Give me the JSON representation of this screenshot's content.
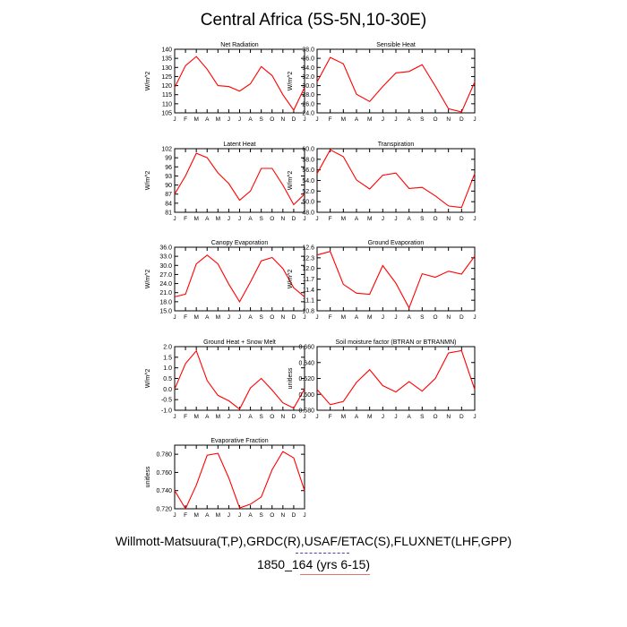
{
  "title": "Central Africa (5S-5N,10-30E)",
  "footer": {
    "line1": "Willmott-Matsuura(T,P),GRDC(R),USAF/ETAC(S),FLUXNET(LHF,GPP)",
    "line2": "1850_164 (yrs 6-15)"
  },
  "colors": {
    "series": "#ff0000",
    "axis": "#000000"
  },
  "chart_data": [
    {
      "type": "line",
      "title": "Net Radiation",
      "ylabel": "W/m^2",
      "x": [
        "J",
        "F",
        "M",
        "A",
        "M",
        "J",
        "J",
        "A",
        "S",
        "O",
        "N",
        "D",
        "J"
      ],
      "yticks": [
        "105",
        "110",
        "115",
        "120",
        "125",
        "130",
        "135",
        "140"
      ],
      "ylim": [
        105,
        140
      ],
      "series": [
        {
          "values": [
            119,
            131,
            136,
            129,
            120,
            119.5,
            117,
            121,
            130.5,
            125.5,
            115,
            106.5,
            119
          ]
        }
      ]
    },
    {
      "type": "line",
      "title": "Sensible Heat",
      "ylabel": "W/m^2",
      "x": [
        "J",
        "F",
        "M",
        "A",
        "M",
        "J",
        "J",
        "A",
        "S",
        "O",
        "N",
        "D",
        "J"
      ],
      "yticks": [
        "24.0",
        "26.0",
        "28.0",
        "30.0",
        "32.0",
        "34.0",
        "36.0",
        "38.0"
      ],
      "ylim": [
        24,
        38
      ],
      "series": [
        {
          "values": [
            30.8,
            36.2,
            34.8,
            28.1,
            26.5,
            29.8,
            32.8,
            33.1,
            34.6,
            29.9,
            24.9,
            24.2,
            30.8
          ]
        }
      ]
    },
    {
      "type": "line",
      "title": "Latent Heat",
      "ylabel": "W/m^2",
      "x": [
        "J",
        "F",
        "M",
        "A",
        "M",
        "J",
        "J",
        "A",
        "S",
        "O",
        "N",
        "D",
        "J"
      ],
      "yticks": [
        "81",
        "84",
        "87",
        "90",
        "93",
        "96",
        "99",
        "102"
      ],
      "ylim": [
        81,
        102
      ],
      "series": [
        {
          "values": [
            87,
            93,
            100.5,
            99,
            94,
            90.5,
            85,
            88,
            95.5,
            95.5,
            90,
            83.5,
            87
          ]
        }
      ]
    },
    {
      "type": "line",
      "title": "Transpiration",
      "ylabel": "W/m^2",
      "x": [
        "J",
        "F",
        "M",
        "A",
        "M",
        "J",
        "J",
        "A",
        "S",
        "O",
        "N",
        "D",
        "J"
      ],
      "yticks": [
        "48.0",
        "50.0",
        "52.0",
        "54.0",
        "56.0",
        "58.0",
        "60.0"
      ],
      "ylim": [
        48,
        60
      ],
      "series": [
        {
          "values": [
            55.3,
            59.8,
            58.5,
            54.1,
            52.4,
            55,
            55.4,
            52.5,
            52.7,
            51.1,
            49.2,
            48.9,
            55.3
          ]
        }
      ]
    },
    {
      "type": "line",
      "title": "Canopy Evaporation",
      "ylabel": "W/m^2",
      "x": [
        "J",
        "F",
        "M",
        "A",
        "M",
        "J",
        "J",
        "A",
        "S",
        "O",
        "N",
        "D",
        "J"
      ],
      "yticks": [
        "15.0",
        "18.0",
        "21.0",
        "24.0",
        "27.0",
        "30.0",
        "33.0",
        "36.0"
      ],
      "ylim": [
        15,
        36
      ],
      "series": [
        {
          "values": [
            19.6,
            20.5,
            30.5,
            33.4,
            30.5,
            23.8,
            18,
            24.5,
            31.5,
            32.6,
            29,
            22.6,
            19.6
          ]
        }
      ]
    },
    {
      "type": "line",
      "title": "Ground Evaporation",
      "ylabel": "W/m^2",
      "x": [
        "J",
        "F",
        "M",
        "A",
        "M",
        "J",
        "J",
        "A",
        "S",
        "O",
        "N",
        "D",
        "J"
      ],
      "yticks": [
        "10.8",
        "11.1",
        "11.4",
        "11.7",
        "12.0",
        "12.3",
        "12.6"
      ],
      "ylim": [
        10.8,
        12.6
      ],
      "series": [
        {
          "values": [
            12.38,
            12.48,
            11.55,
            11.3,
            11.27,
            12.08,
            11.58,
            10.88,
            11.85,
            11.75,
            11.92,
            11.84,
            12.35
          ]
        }
      ]
    },
    {
      "type": "line",
      "title": "Ground Heat + Snow Melt",
      "ylabel": "W/m^2",
      "x": [
        "J",
        "F",
        "M",
        "A",
        "M",
        "J",
        "J",
        "A",
        "S",
        "O",
        "N",
        "D",
        "J"
      ],
      "yticks": [
        "-1.0",
        "-0.5",
        "0.0",
        "0.5",
        "1.0",
        "1.5",
        "2.0"
      ],
      "ylim": [
        -1,
        2
      ],
      "series": [
        {
          "values": [
            0.0,
            1.2,
            1.8,
            0.4,
            -0.3,
            -0.55,
            -0.95,
            0.05,
            0.5,
            -0.05,
            -0.65,
            -0.9,
            0.0
          ]
        }
      ]
    },
    {
      "type": "line",
      "title": "Soil moisture factor (BTRAN or BTRANMN)",
      "ylabel": "unitless",
      "x": [
        "J",
        "F",
        "M",
        "A",
        "M",
        "J",
        "J",
        "A",
        "S",
        "O",
        "N",
        "D",
        "J"
      ],
      "yticks": [
        "0.580",
        "0.600",
        "0.620",
        "0.640",
        "0.660"
      ],
      "ylim": [
        0.58,
        0.66
      ],
      "series": [
        {
          "values": [
            0.606,
            0.587,
            0.591,
            0.615,
            0.631,
            0.611,
            0.603,
            0.616,
            0.604,
            0.62,
            0.652,
            0.655,
            0.606
          ]
        }
      ]
    },
    {
      "type": "line",
      "title": "Evaporative Fraction",
      "ylabel": "unitless",
      "x": [
        "J",
        "F",
        "M",
        "A",
        "M",
        "J",
        "J",
        "A",
        "S",
        "O",
        "N",
        "D",
        "J"
      ],
      "yticks": [
        "0.720",
        "0.740",
        "0.760",
        "0.780"
      ],
      "ylim": [
        0.72,
        0.79
      ],
      "series": [
        {
          "values": [
            0.74,
            0.72,
            0.746,
            0.779,
            0.781,
            0.754,
            0.721,
            0.725,
            0.733,
            0.763,
            0.783,
            0.776,
            0.74
          ]
        }
      ]
    }
  ]
}
